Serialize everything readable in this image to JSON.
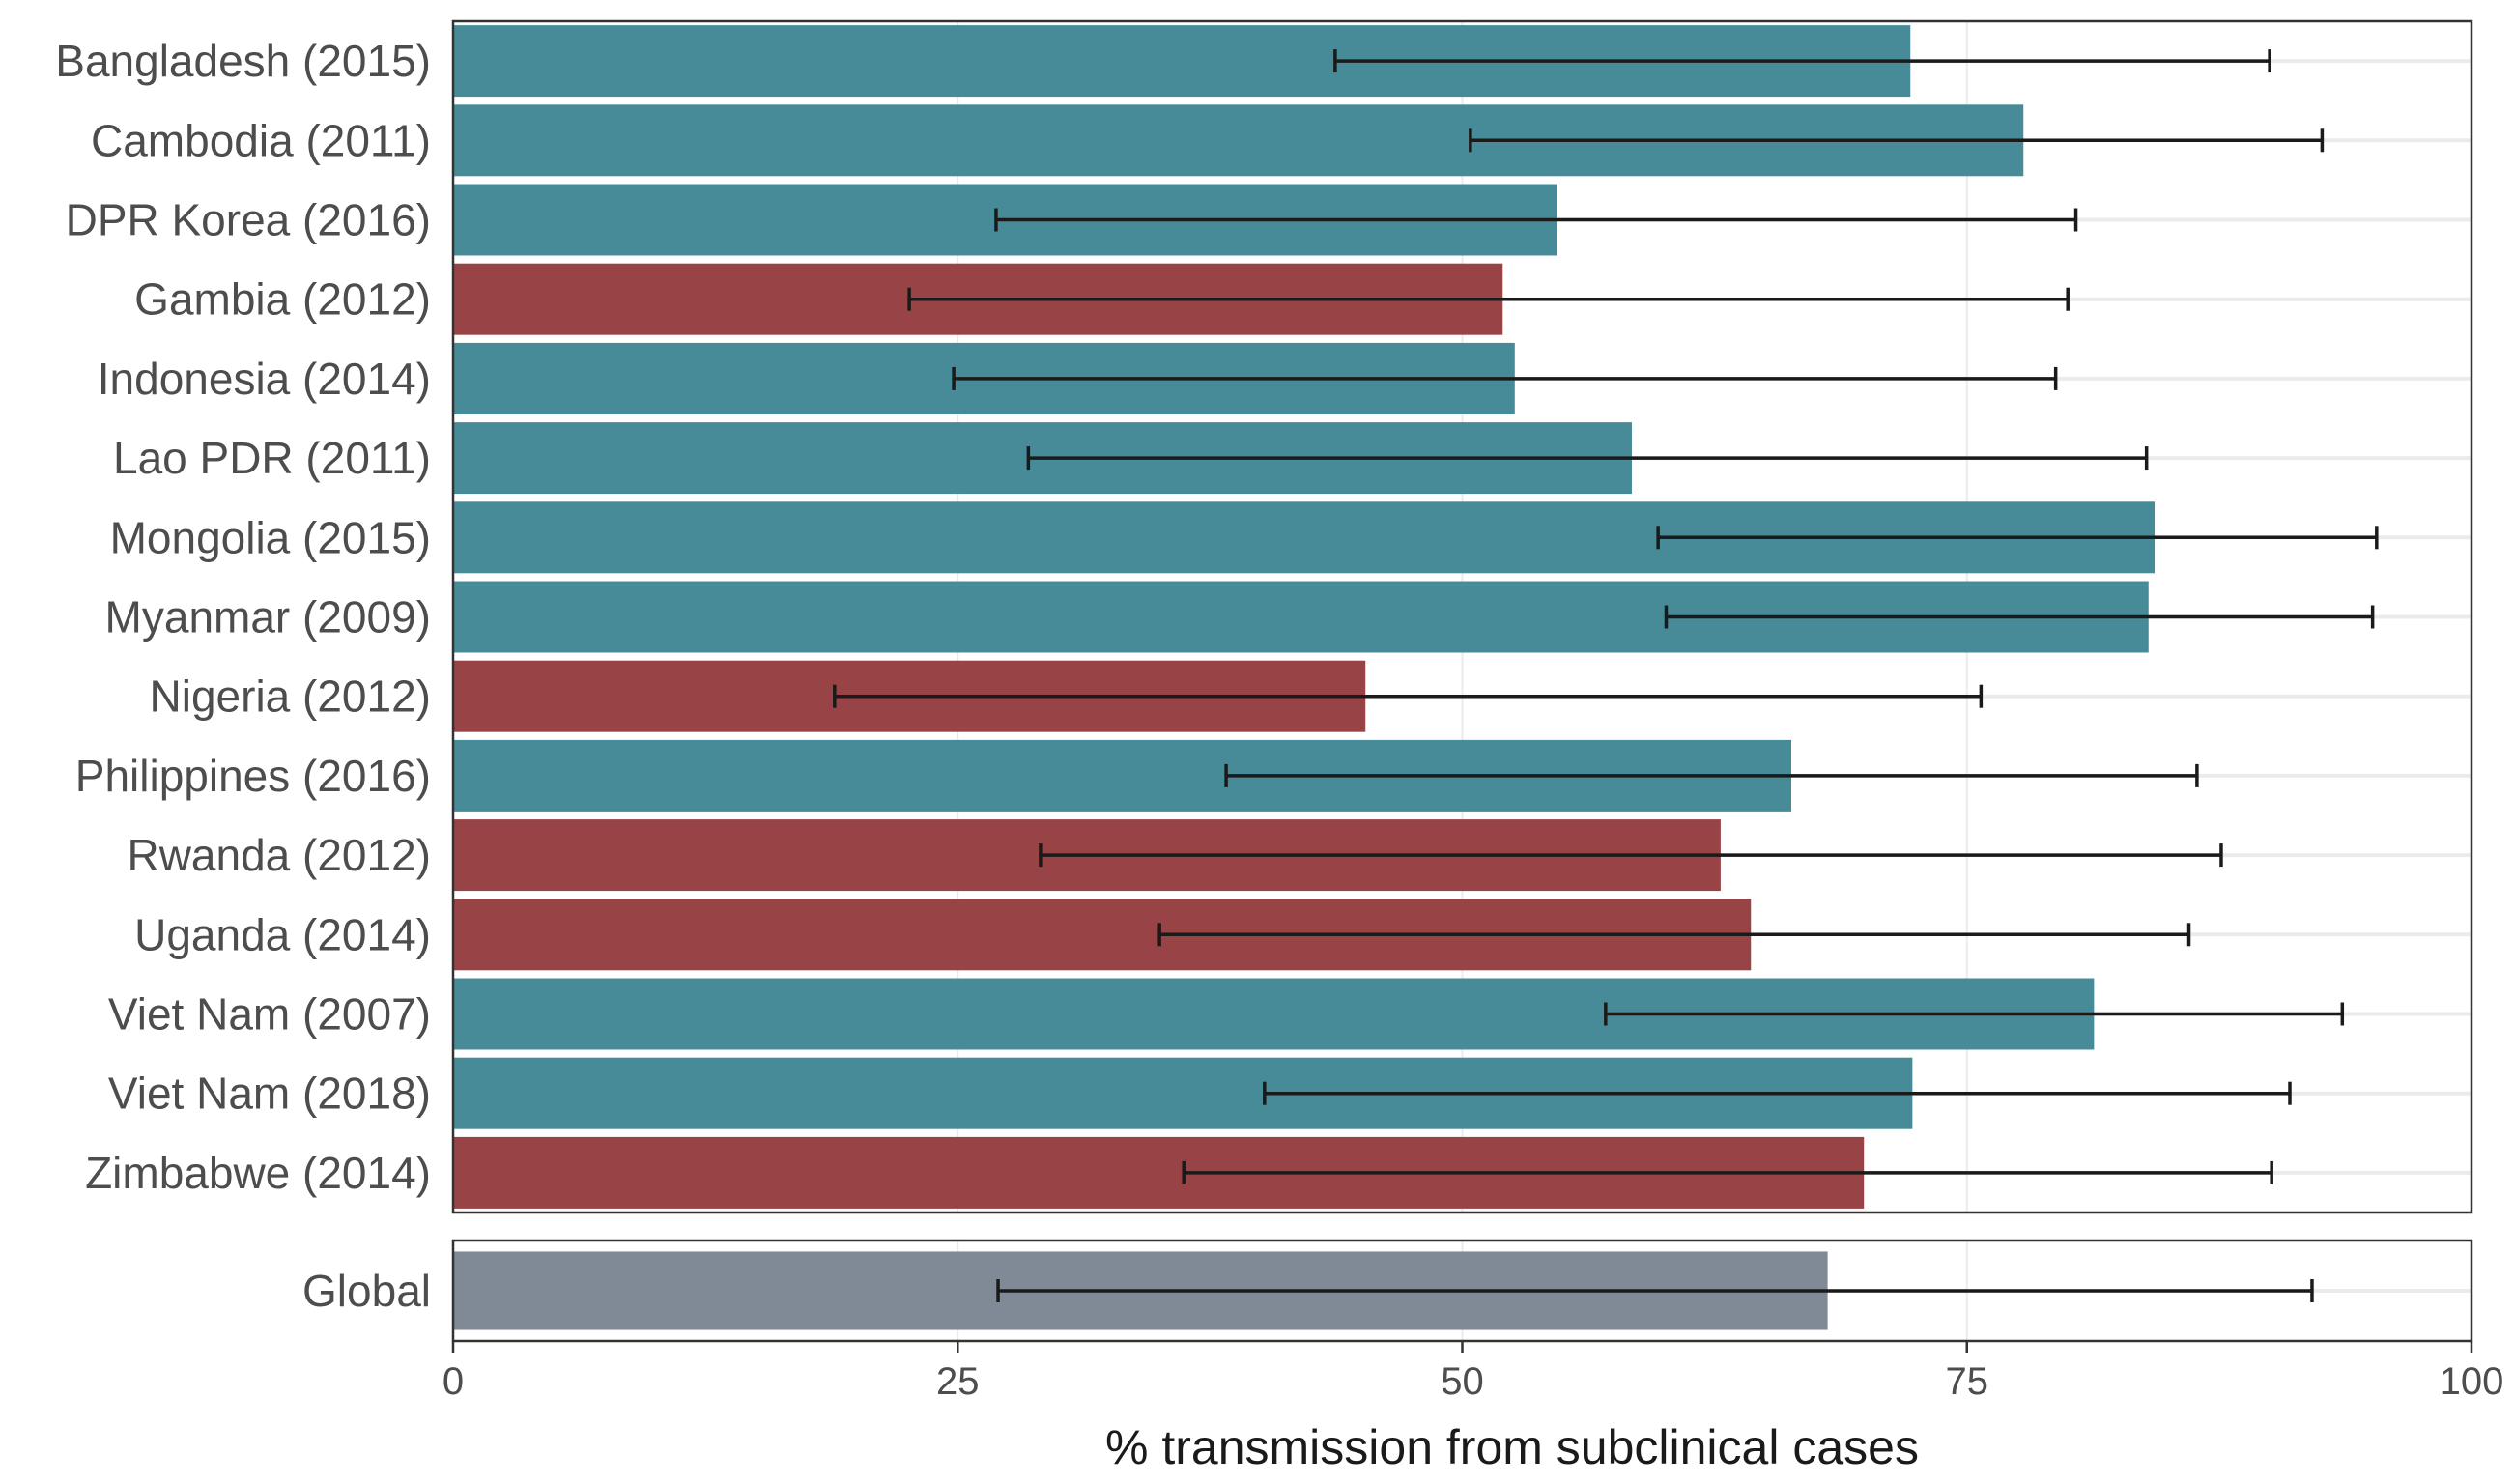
{
  "chart_data": {
    "type": "bar",
    "orientation": "horizontal",
    "title": "",
    "xlabel": "% transmission from subclinical cases",
    "ylabel": "",
    "xlim": [
      0,
      100
    ],
    "xticks": [
      0,
      25,
      50,
      75,
      100
    ],
    "grid": true,
    "legend": "none",
    "colors": {
      "asia": "#478b98",
      "africa": "#984346",
      "global": "#808a96",
      "errorbar": "#1a1a1a"
    },
    "categories": [
      "Bangladesh (2015)",
      "Cambodia (2011)",
      "DPR Korea (2016)",
      "Gambia (2012)",
      "Indonesia (2014)",
      "Lao PDR (2011)",
      "Mongolia (2015)",
      "Myanmar (2009)",
      "Nigeria (2012)",
      "Philippines (2016)",
      "Rwanda (2012)",
      "Uganda (2014)",
      "Viet Nam (2007)",
      "Viet Nam (2018)",
      "Zimbabwe (2014)"
    ],
    "region": [
      "asia",
      "asia",
      "asia",
      "africa",
      "asia",
      "asia",
      "asia",
      "asia",
      "africa",
      "asia",
      "africa",
      "africa",
      "asia",
      "asia",
      "africa"
    ],
    "values": [
      72.2,
      77.8,
      54.7,
      52.0,
      52.6,
      58.4,
      84.3,
      84.0,
      45.2,
      66.3,
      62.8,
      64.3,
      81.3,
      72.3,
      69.9
    ],
    "lower": [
      43.7,
      50.4,
      26.9,
      22.6,
      24.8,
      28.5,
      59.7,
      60.1,
      18.9,
      38.3,
      29.1,
      35.0,
      57.1,
      40.2,
      36.2
    ],
    "upper": [
      90.0,
      92.6,
      80.4,
      80.0,
      79.4,
      83.9,
      95.3,
      95.1,
      75.7,
      86.4,
      87.6,
      86.0,
      93.6,
      91.0,
      90.1
    ],
    "global": {
      "label": "Global",
      "value": 68.1,
      "lower": 27.0,
      "upper": 92.1
    }
  }
}
